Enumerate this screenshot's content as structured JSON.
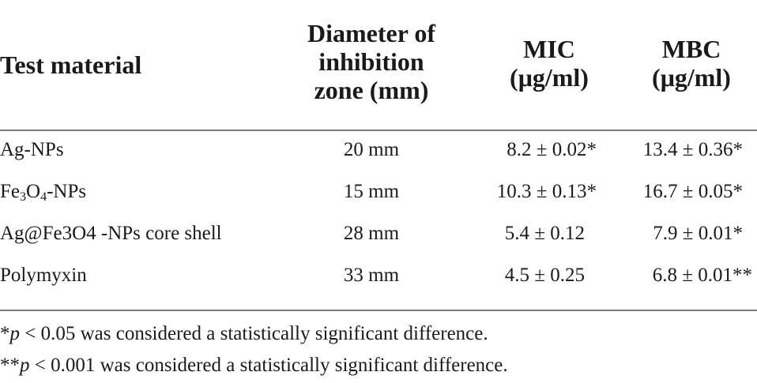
{
  "table": {
    "headers": {
      "col1": "Test material",
      "col2": [
        "Diameter of",
        "inhibition",
        "zone (mm)"
      ],
      "col3": [
        "MIC",
        "(μg/ml)"
      ],
      "col4": [
        "MBC",
        "(μg/ml)"
      ]
    },
    "rows": [
      {
        "material": "Ag-NPs",
        "zone": "20 mm",
        "mic": "8.2 ± 0.02*",
        "mbc": "13.4 ± 0.36*"
      },
      {
        "material_parts": {
          "a": "Fe",
          "s1": "3",
          "b": "O",
          "s2": "4",
          "c": "-NPs"
        },
        "zone": "15 mm",
        "mic": "10.3 ± 0.13*",
        "mbc": "16.7 ± 0.05*"
      },
      {
        "material": "Ag@Fe3O4 -NPs core shell",
        "zone": "28 mm",
        "mic": "5.4 ± 0.12",
        "mbc": "7.9 ± 0.01*"
      },
      {
        "material": "Polymyxin",
        "zone": "33 mm",
        "mic": "4.5 ± 0.25",
        "mbc": "6.8 ± 0.01**"
      }
    ]
  },
  "footnotes": [
    {
      "prefix": "*",
      "var": "p",
      "text": " < 0.05 was considered a statistically significant difference."
    },
    {
      "prefix": "**",
      "var": "p",
      "text": " < 0.001 was considered a statistically significant difference."
    }
  ]
}
